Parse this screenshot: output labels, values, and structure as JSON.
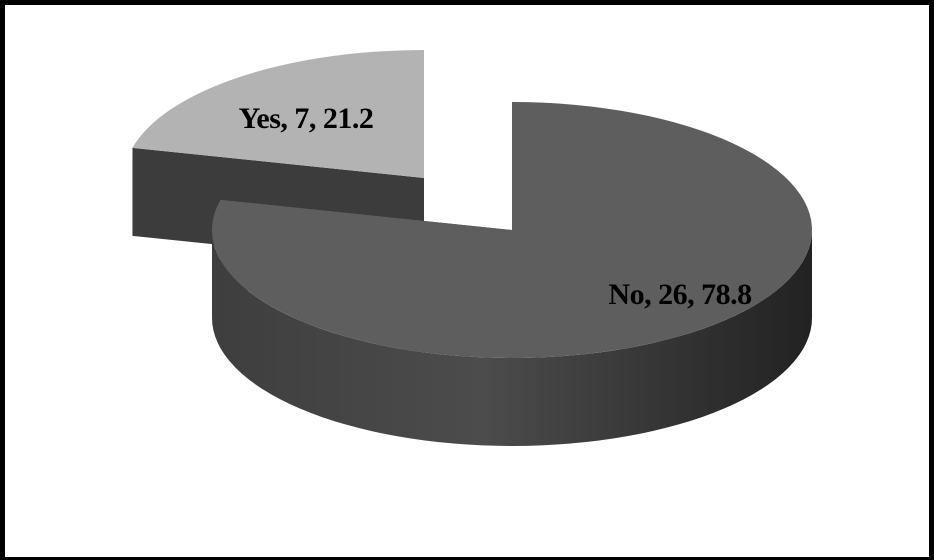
{
  "chart_data": {
    "type": "pie",
    "title": "",
    "legend": "none",
    "style": "3d-exploded",
    "slices": [
      {
        "category": "No",
        "count": 26,
        "percent": 78.8,
        "color": "#5e5e5e",
        "label": "No, 26, 78.8"
      },
      {
        "category": "Yes",
        "count": 7,
        "percent": 21.2,
        "color": "#b3b3b3",
        "label": "Yes, 7, 21.2"
      }
    ]
  }
}
